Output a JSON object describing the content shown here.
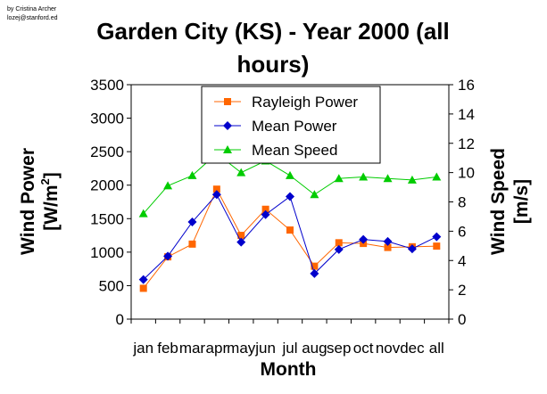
{
  "credit": {
    "line1": "by Cristina Archer",
    "line2": "lozej@stanford.ed"
  },
  "chart_data": {
    "type": "line",
    "title_line1": "Garden City (KS) - Year 2000 (all",
    "title_line2": "hours)",
    "categories": [
      "jan",
      "feb",
      "mar",
      "apr",
      "may",
      "jun",
      "jul",
      "aug",
      "sep",
      "oct",
      "nov",
      "dec",
      "all"
    ],
    "xlabel": "Month",
    "ylabel_left": "Wind Power [W/m²]",
    "ylabel_left_line1": "Wind Power",
    "ylabel_left_line2_prefix": "[W/m",
    "ylabel_left_line2_sup": "2",
    "ylabel_left_line2_suffix": "]",
    "ylabel_right": "Wind Speed [m/s]",
    "ylabel_right_line1": "Wind Speed",
    "ylabel_right_line2": "[m/s]",
    "ylim_left": [
      0,
      3500
    ],
    "yticks_left": [
      0,
      500,
      1000,
      1500,
      2000,
      2500,
      3000,
      3500
    ],
    "ylim_right": [
      0,
      16
    ],
    "yticks_right": [
      0,
      2,
      4,
      6,
      8,
      10,
      12,
      14,
      16
    ],
    "grid": false,
    "legend_position": "top-center",
    "series": [
      {
        "name": "Rayleigh Power",
        "axis": "left",
        "color": "#ff6600",
        "marker": "square",
        "values": [
          460,
          930,
          1120,
          1940,
          1250,
          1640,
          1330,
          790,
          1140,
          1130,
          1070,
          1080,
          1090
        ]
      },
      {
        "name": "Mean Power",
        "axis": "left",
        "color": "#0000cc",
        "marker": "diamond",
        "values": [
          590,
          940,
          1450,
          1860,
          1150,
          1560,
          1830,
          680,
          1040,
          1190,
          1160,
          1050,
          1230
        ]
      },
      {
        "name": "Mean Speed",
        "axis": "right",
        "color": "#00cc00",
        "marker": "triangle",
        "values": [
          7.2,
          9.1,
          9.8,
          11.3,
          10.0,
          10.8,
          9.8,
          8.5,
          9.6,
          9.7,
          9.6,
          9.5,
          9.7
        ]
      }
    ]
  }
}
